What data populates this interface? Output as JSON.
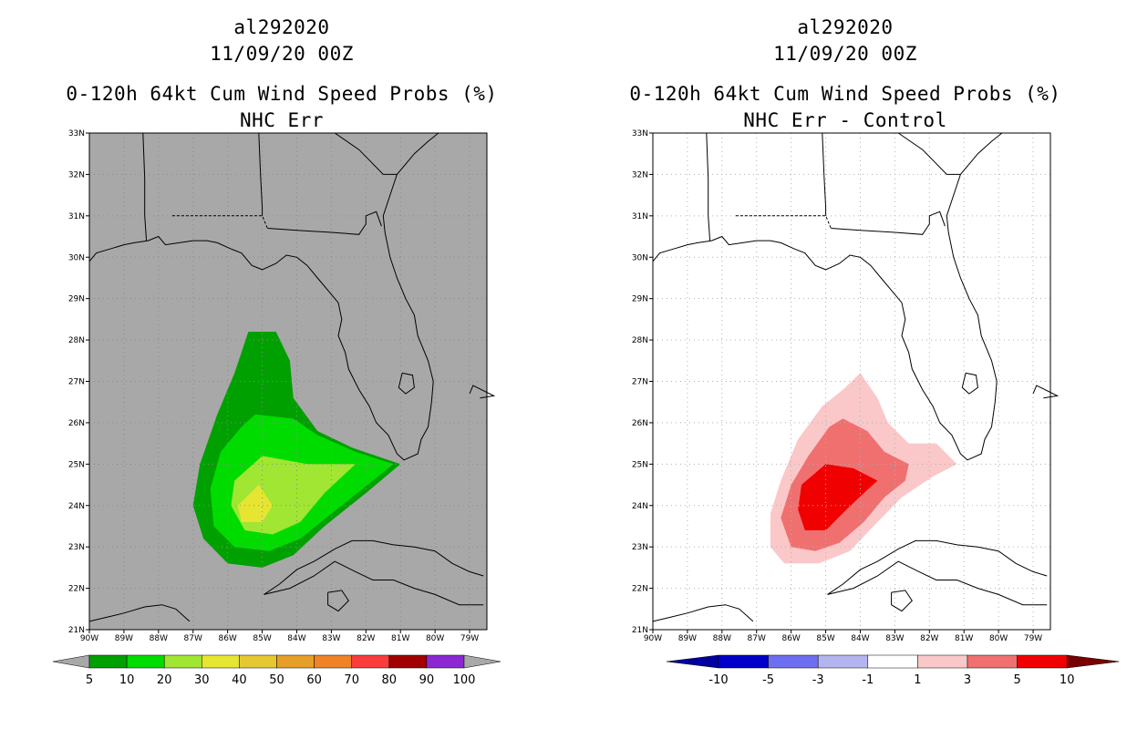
{
  "panels": [
    {
      "id": "left",
      "storm_id": "al292020",
      "datetime": "11/09/20 00Z",
      "product": "0-120h 64kt Cum Wind Speed Probs (%)",
      "subtitle": "NHC Err",
      "background_color": "#a8a8a8",
      "colorbar": {
        "labels": [
          "5",
          "10",
          "20",
          "30",
          "40",
          "50",
          "60",
          "70",
          "80",
          "90",
          "100"
        ],
        "colors": [
          "#00a000",
          "#00dc00",
          "#a0e632",
          "#e6e632",
          "#e6c832",
          "#e6a028",
          "#f08228",
          "#fa3c3c",
          "#a00000",
          "#8c28d2"
        ],
        "end_color": "#a8a8a8"
      },
      "contours": [
        {
          "level": "5",
          "color": "#00a000"
        },
        {
          "level": "10",
          "color": "#00dc00"
        },
        {
          "level": "20",
          "color": "#a0e632"
        },
        {
          "level": "30",
          "color": "#e6e632"
        }
      ]
    },
    {
      "id": "right",
      "storm_id": "al292020",
      "datetime": "11/09/20 00Z",
      "product": "0-120h 64kt Cum Wind Speed Probs (%)",
      "subtitle": "NHC Err - Control",
      "background_color": "#ffffff",
      "colorbar": {
        "labels": [
          "-10",
          "-5",
          "-3",
          "-1",
          "1",
          "3",
          "5",
          "10"
        ],
        "colors": [
          "#0000c8",
          "#6e6ef0",
          "#b4b4f0",
          "#ffffff",
          "#fac8c8",
          "#f07070",
          "#f00000"
        ],
        "left_end_color": "#0000a0",
        "right_end_color": "#780000"
      },
      "contours": [
        {
          "level": "1",
          "color": "#fac8c8"
        },
        {
          "level": "3",
          "color": "#f07070"
        },
        {
          "level": "5",
          "color": "#f00000"
        }
      ]
    }
  ],
  "axes": {
    "lat_labels": [
      "33N",
      "32N",
      "31N",
      "30N",
      "29N",
      "28N",
      "27N",
      "26N",
      "25N",
      "24N",
      "23N",
      "22N",
      "21N"
    ],
    "lon_labels": [
      "90W",
      "89W",
      "88W",
      "87W",
      "86W",
      "85W",
      "84W",
      "83W",
      "82W",
      "81W",
      "80W",
      "79W"
    ]
  }
}
